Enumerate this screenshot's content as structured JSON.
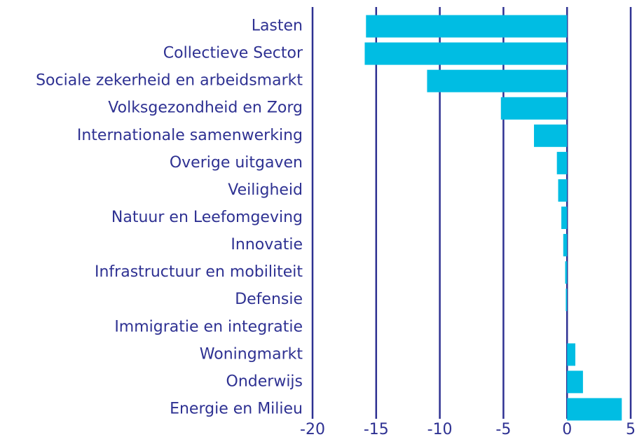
{
  "chart_data": {
    "type": "barh",
    "categories": [
      "Lasten",
      "Collectieve Sector",
      "Sociale zekerheid en arbeidsmarkt",
      "Volksgezondheid en Zorg",
      "Internationale samenwerking",
      "Overige uitgaven",
      "Veiligheid",
      "Natuur en Leefomgeving",
      "Innovatie",
      "Infrastructuur en mobiliteit",
      "Defensie",
      "Immigratie en integratie",
      "Woningmarkt",
      "Onderwijs",
      "Energie en Milieu"
    ],
    "values": [
      -15.8,
      -15.9,
      -11.0,
      -5.2,
      -2.6,
      -0.8,
      -0.7,
      -0.45,
      -0.3,
      -0.15,
      -0.1,
      0,
      0.65,
      1.25,
      4.3
    ],
    "color": "#00bde3",
    "xlim": [
      -20,
      5
    ],
    "xticks": [
      -20,
      -15,
      -10,
      -5,
      0,
      5
    ],
    "grid": true
  }
}
